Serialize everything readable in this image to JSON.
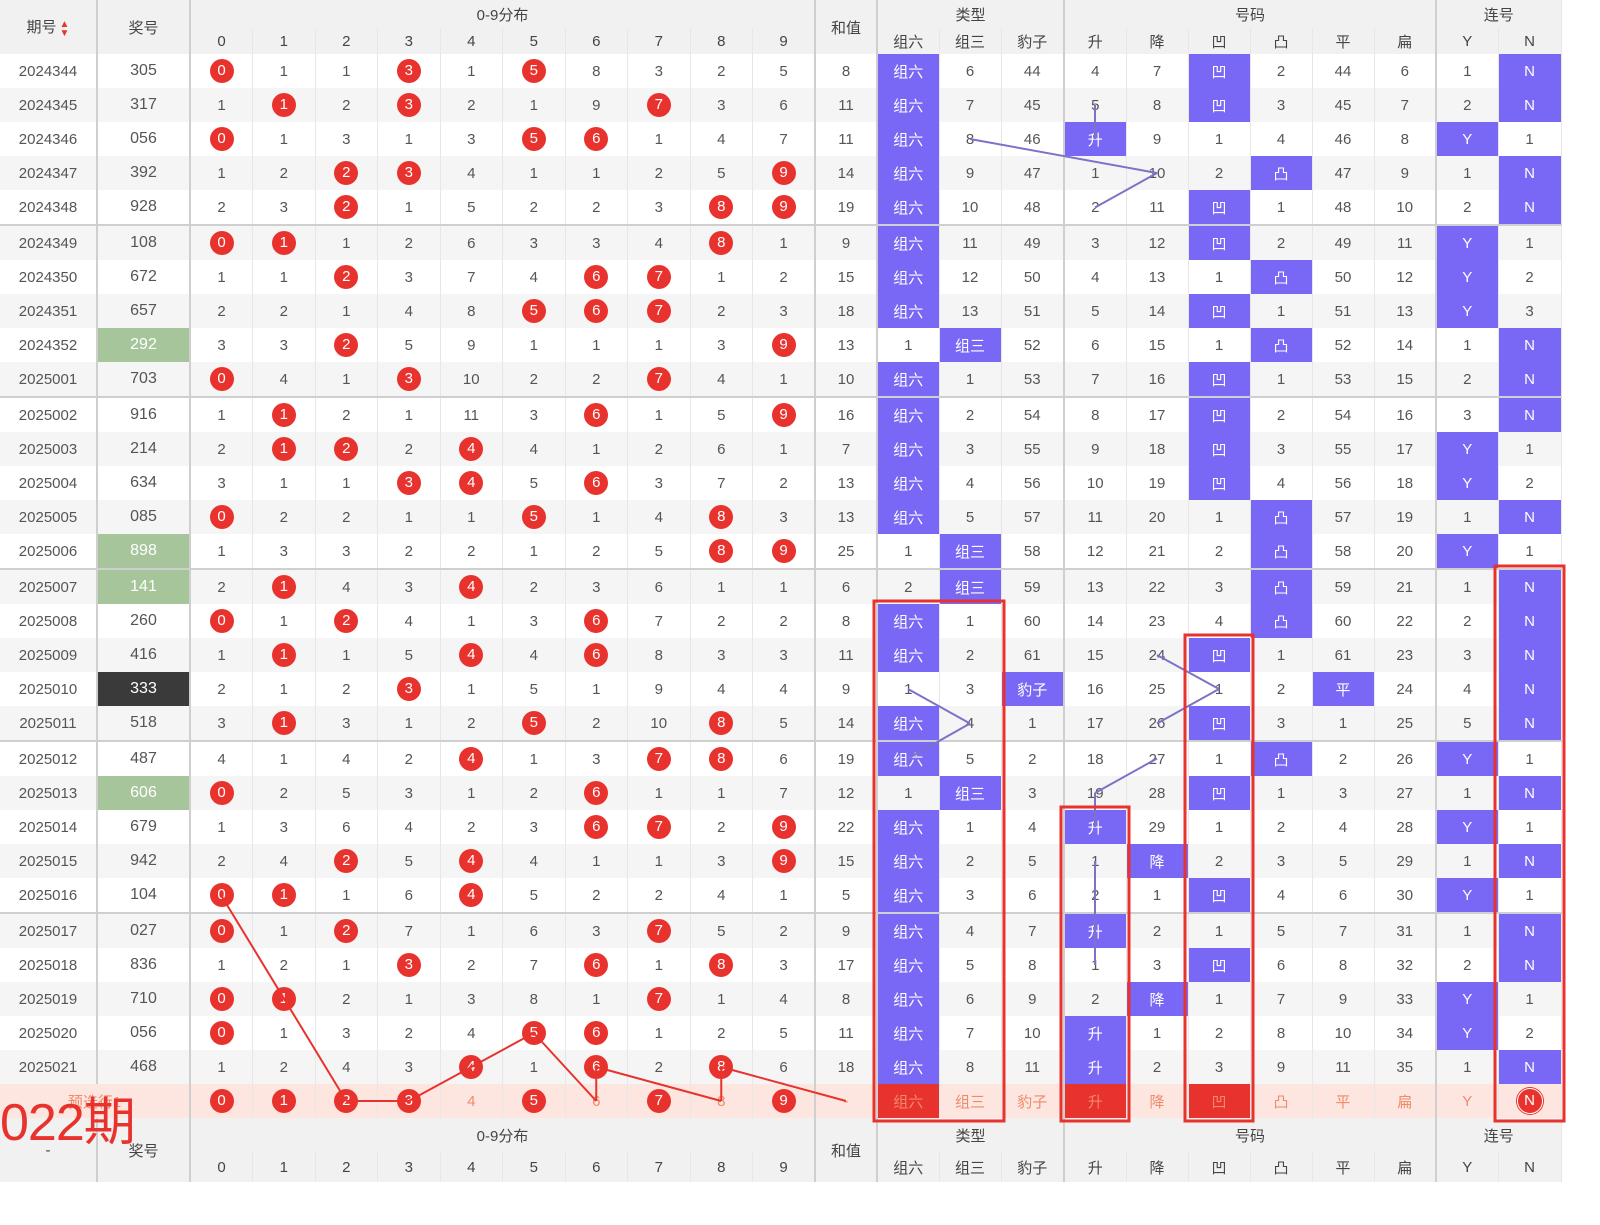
{
  "header": {
    "issue_label": "期号",
    "award_label": "奖号",
    "dist_label": "0-9分布",
    "sum_label": "和值",
    "type_label": "类型",
    "num_label": "号码",
    "consec_label": "连号",
    "digits": [
      "0",
      "1",
      "2",
      "3",
      "4",
      "5",
      "6",
      "7",
      "8",
      "9"
    ],
    "type_cols": [
      "组六",
      "组三",
      "豹子"
    ],
    "num_cols": [
      "升",
      "降",
      "凹",
      "凸",
      "平",
      "扁"
    ],
    "consec_cols": [
      "Y",
      "N"
    ]
  },
  "rows": [
    {
      "issue": "2024344",
      "award": "305",
      "dist": [
        "0",
        "1",
        "1",
        "3",
        "1",
        "5",
        "8",
        "3",
        "2",
        "5"
      ],
      "sum": "8",
      "type": [
        "组六",
        "6",
        "44"
      ],
      "num": [
        "4",
        "7",
        "凹",
        "2",
        "44",
        "6"
      ],
      "consec": [
        "1",
        "N"
      ]
    },
    {
      "issue": "2024345",
      "award": "317",
      "dist": [
        "1",
        "1",
        "2",
        "3",
        "2",
        "1",
        "9",
        "7",
        "3",
        "6"
      ],
      "sum": "11",
      "type": [
        "组六",
        "7",
        "45"
      ],
      "num": [
        "5",
        "8",
        "凹",
        "3",
        "45",
        "7"
      ],
      "consec": [
        "2",
        "N"
      ]
    },
    {
      "issue": "2024346",
      "award": "056",
      "dist": [
        "0",
        "1",
        "3",
        "1",
        "3",
        "5",
        "6",
        "1",
        "4",
        "7"
      ],
      "sum": "11",
      "type": [
        "组六",
        "8",
        "46"
      ],
      "num": [
        "升",
        "9",
        "1",
        "4",
        "46",
        "8"
      ],
      "consec": [
        "Y",
        "1"
      ]
    },
    {
      "issue": "2024347",
      "award": "392",
      "dist": [
        "1",
        "2",
        "2",
        "3",
        "4",
        "1",
        "1",
        "2",
        "5",
        "9"
      ],
      "sum": "14",
      "type": [
        "组六",
        "9",
        "47"
      ],
      "num": [
        "1",
        "10",
        "2",
        "凸",
        "47",
        "9"
      ],
      "consec": [
        "1",
        "N"
      ]
    },
    {
      "issue": "2024348",
      "award": "928",
      "dist": [
        "2",
        "3",
        "2",
        "1",
        "5",
        "2",
        "2",
        "3",
        "8",
        "9"
      ],
      "sum": "19",
      "type": [
        "组六",
        "10",
        "48"
      ],
      "num": [
        "2",
        "11",
        "凹",
        "1",
        "48",
        "10"
      ],
      "consec": [
        "2",
        "N"
      ]
    },
    {
      "issue": "2024349",
      "award": "108",
      "dist": [
        "0",
        "1",
        "1",
        "2",
        "6",
        "3",
        "3",
        "4",
        "8",
        "1"
      ],
      "sum": "9",
      "type": [
        "组六",
        "11",
        "49"
      ],
      "num": [
        "3",
        "12",
        "凹",
        "2",
        "49",
        "11"
      ],
      "consec": [
        "Y",
        "1"
      ]
    },
    {
      "issue": "2024350",
      "award": "672",
      "dist": [
        "1",
        "1",
        "2",
        "3",
        "7",
        "4",
        "6",
        "7",
        "1",
        "2"
      ],
      "sum": "15",
      "type": [
        "组六",
        "12",
        "50"
      ],
      "num": [
        "4",
        "13",
        "1",
        "凸",
        "50",
        "12"
      ],
      "consec": [
        "Y",
        "2"
      ]
    },
    {
      "issue": "2024351",
      "award": "657",
      "dist": [
        "2",
        "2",
        "1",
        "4",
        "8",
        "5",
        "6",
        "7",
        "2",
        "3"
      ],
      "sum": "18",
      "type": [
        "组六",
        "13",
        "51"
      ],
      "num": [
        "5",
        "14",
        "凹",
        "1",
        "51",
        "13"
      ],
      "consec": [
        "Y",
        "3"
      ]
    },
    {
      "issue": "2024352",
      "award": "292",
      "dist": [
        "3",
        "3",
        "2",
        "5",
        "9",
        "1",
        "1",
        "1",
        "3",
        "9"
      ],
      "sum": "13",
      "type": [
        "1",
        "组三",
        "52"
      ],
      "num": [
        "6",
        "15",
        "1",
        "凸",
        "52",
        "14"
      ],
      "consec": [
        "1",
        "N"
      ]
    },
    {
      "issue": "2025001",
      "award": "703",
      "dist": [
        "0",
        "4",
        "1",
        "3",
        "10",
        "2",
        "2",
        "7",
        "4",
        "1"
      ],
      "sum": "10",
      "type": [
        "组六",
        "1",
        "53"
      ],
      "num": [
        "7",
        "16",
        "凹",
        "1",
        "53",
        "15"
      ],
      "consec": [
        "2",
        "N"
      ]
    },
    {
      "issue": "2025002",
      "award": "916",
      "dist": [
        "1",
        "1",
        "2",
        "1",
        "11",
        "3",
        "6",
        "1",
        "5",
        "9"
      ],
      "sum": "16",
      "type": [
        "组六",
        "2",
        "54"
      ],
      "num": [
        "8",
        "17",
        "凹",
        "2",
        "54",
        "16"
      ],
      "consec": [
        "3",
        "N"
      ]
    },
    {
      "issue": "2025003",
      "award": "214",
      "dist": [
        "2",
        "1",
        "2",
        "2",
        "4",
        "4",
        "1",
        "2",
        "6",
        "1"
      ],
      "sum": "7",
      "type": [
        "组六",
        "3",
        "55"
      ],
      "num": [
        "9",
        "18",
        "凹",
        "3",
        "55",
        "17"
      ],
      "consec": [
        "Y",
        "1"
      ]
    },
    {
      "issue": "2025004",
      "award": "634",
      "dist": [
        "3",
        "1",
        "1",
        "3",
        "4",
        "5",
        "6",
        "3",
        "7",
        "2"
      ],
      "sum": "13",
      "type": [
        "组六",
        "4",
        "56"
      ],
      "num": [
        "10",
        "19",
        "凹",
        "4",
        "56",
        "18"
      ],
      "consec": [
        "Y",
        "2"
      ]
    },
    {
      "issue": "2025005",
      "award": "085",
      "dist": [
        "0",
        "2",
        "2",
        "1",
        "1",
        "5",
        "1",
        "4",
        "8",
        "3"
      ],
      "sum": "13",
      "type": [
        "组六",
        "5",
        "57"
      ],
      "num": [
        "11",
        "20",
        "1",
        "凸",
        "57",
        "19"
      ],
      "consec": [
        "1",
        "N"
      ]
    },
    {
      "issue": "2025006",
      "award": "898",
      "dist": [
        "1",
        "3",
        "3",
        "2",
        "2",
        "1",
        "2",
        "5",
        "8",
        "9"
      ],
      "sum": "25",
      "type": [
        "1",
        "组三",
        "58"
      ],
      "num": [
        "12",
        "21",
        "2",
        "凸",
        "58",
        "20"
      ],
      "consec": [
        "Y",
        "1"
      ]
    },
    {
      "issue": "2025007",
      "award": "141",
      "dist": [
        "2",
        "1",
        "4",
        "3",
        "4",
        "2",
        "3",
        "6",
        "1",
        "1"
      ],
      "sum": "6",
      "type": [
        "2",
        "组三",
        "59"
      ],
      "num": [
        "13",
        "22",
        "3",
        "凸",
        "59",
        "21"
      ],
      "consec": [
        "1",
        "N"
      ]
    },
    {
      "issue": "2025008",
      "award": "260",
      "dist": [
        "0",
        "1",
        "2",
        "4",
        "1",
        "3",
        "6",
        "7",
        "2",
        "2"
      ],
      "sum": "8",
      "type": [
        "组六",
        "1",
        "60"
      ],
      "num": [
        "14",
        "23",
        "4",
        "凸",
        "60",
        "22"
      ],
      "consec": [
        "2",
        "N"
      ]
    },
    {
      "issue": "2025009",
      "award": "416",
      "dist": [
        "1",
        "1",
        "1",
        "5",
        "4",
        "4",
        "6",
        "8",
        "3",
        "3"
      ],
      "sum": "11",
      "type": [
        "组六",
        "2",
        "61"
      ],
      "num": [
        "15",
        "24",
        "凹",
        "1",
        "61",
        "23"
      ],
      "consec": [
        "3",
        "N"
      ]
    },
    {
      "issue": "2025010",
      "award": "333",
      "dist": [
        "2",
        "1",
        "2",
        "3",
        "1",
        "5",
        "1",
        "9",
        "4",
        "4"
      ],
      "sum": "9",
      "type": [
        "1",
        "3",
        "豹子"
      ],
      "num": [
        "16",
        "25",
        "1",
        "2",
        "平",
        "24"
      ],
      "consec": [
        "4",
        "N"
      ]
    },
    {
      "issue": "2025011",
      "award": "518",
      "dist": [
        "3",
        "1",
        "3",
        "1",
        "2",
        "5",
        "2",
        "10",
        "8",
        "5"
      ],
      "sum": "14",
      "type": [
        "组六",
        "4",
        "1"
      ],
      "num": [
        "17",
        "26",
        "凹",
        "3",
        "1",
        "25"
      ],
      "consec": [
        "5",
        "N"
      ]
    },
    {
      "issue": "2025012",
      "award": "487",
      "dist": [
        "4",
        "1",
        "4",
        "2",
        "4",
        "1",
        "3",
        "7",
        "8",
        "6"
      ],
      "sum": "19",
      "type": [
        "组六",
        "5",
        "2"
      ],
      "num": [
        "18",
        "27",
        "1",
        "凸",
        "2",
        "26"
      ],
      "consec": [
        "Y",
        "1"
      ]
    },
    {
      "issue": "2025013",
      "award": "606",
      "dist": [
        "0",
        "2",
        "5",
        "3",
        "1",
        "2",
        "6",
        "1",
        "1",
        "7"
      ],
      "sum": "12",
      "type": [
        "1",
        "组三",
        "3"
      ],
      "num": [
        "19",
        "28",
        "凹",
        "1",
        "3",
        "27"
      ],
      "consec": [
        "1",
        "N"
      ]
    },
    {
      "issue": "2025014",
      "award": "679",
      "dist": [
        "1",
        "3",
        "6",
        "4",
        "2",
        "3",
        "6",
        "7",
        "2",
        "9"
      ],
      "sum": "22",
      "type": [
        "组六",
        "1",
        "4"
      ],
      "num": [
        "升",
        "29",
        "1",
        "2",
        "4",
        "28"
      ],
      "consec": [
        "Y",
        "1"
      ]
    },
    {
      "issue": "2025015",
      "award": "942",
      "dist": [
        "2",
        "4",
        "2",
        "5",
        "4",
        "4",
        "1",
        "1",
        "3",
        "9"
      ],
      "sum": "15",
      "type": [
        "组六",
        "2",
        "5"
      ],
      "num": [
        "1",
        "降",
        "2",
        "3",
        "5",
        "29"
      ],
      "consec": [
        "1",
        "N"
      ]
    },
    {
      "issue": "2025016",
      "award": "104",
      "dist": [
        "0",
        "1",
        "1",
        "6",
        "4",
        "5",
        "2",
        "2",
        "4",
        "1"
      ],
      "sum": "5",
      "type": [
        "组六",
        "3",
        "6"
      ],
      "num": [
        "2",
        "1",
        "凹",
        "4",
        "6",
        "30"
      ],
      "consec": [
        "Y",
        "1"
      ]
    },
    {
      "issue": "2025017",
      "award": "027",
      "dist": [
        "0",
        "1",
        "2",
        "7",
        "1",
        "6",
        "3",
        "7",
        "5",
        "2"
      ],
      "sum": "9",
      "type": [
        "组六",
        "4",
        "7"
      ],
      "num": [
        "升",
        "2",
        "1",
        "5",
        "7",
        "31"
      ],
      "consec": [
        "1",
        "N"
      ]
    },
    {
      "issue": "2025018",
      "award": "836",
      "dist": [
        "1",
        "2",
        "1",
        "3",
        "2",
        "7",
        "6",
        "1",
        "8",
        "3"
      ],
      "sum": "17",
      "type": [
        "组六",
        "5",
        "8"
      ],
      "num": [
        "1",
        "3",
        "凹",
        "6",
        "8",
        "32"
      ],
      "consec": [
        "2",
        "N"
      ]
    },
    {
      "issue": "2025019",
      "award": "710",
      "dist": [
        "0",
        "1",
        "2",
        "1",
        "3",
        "8",
        "1",
        "7",
        "1",
        "4"
      ],
      "sum": "8",
      "type": [
        "组六",
        "6",
        "9"
      ],
      "num": [
        "2",
        "降",
        "1",
        "7",
        "9",
        "33"
      ],
      "consec": [
        "Y",
        "1"
      ]
    },
    {
      "issue": "2025020",
      "award": "056",
      "dist": [
        "0",
        "1",
        "3",
        "2",
        "4",
        "5",
        "6",
        "1",
        "2",
        "5"
      ],
      "sum": "11",
      "type": [
        "组六",
        "7",
        "10"
      ],
      "num": [
        "升",
        "1",
        "2",
        "8",
        "10",
        "34"
      ],
      "consec": [
        "Y",
        "2"
      ]
    },
    {
      "issue": "2025021",
      "award": "468",
      "dist": [
        "1",
        "2",
        "4",
        "3",
        "4",
        "1",
        "6",
        "2",
        "8",
        "6"
      ],
      "sum": "18",
      "type": [
        "组六",
        "8",
        "11"
      ],
      "num": [
        "升",
        "2",
        "3",
        "9",
        "11",
        "35"
      ],
      "consec": [
        "1",
        "N"
      ]
    }
  ],
  "predict": {
    "label": "预选行1",
    "dist": [
      "0",
      "1",
      "2",
      "3",
      "4",
      "5",
      "6",
      "7",
      "8",
      "9"
    ],
    "sum": "-",
    "type": [
      "组六",
      "组三",
      "豹子"
    ],
    "num": [
      "升",
      "降",
      "凹",
      "凸",
      "平",
      "扁"
    ],
    "consec": [
      "Y",
      "N"
    ]
  },
  "overlay_text": "022期",
  "footer": {
    "issue_placeholder": "-"
  },
  "colors": {
    "ball_red": "#e8322d",
    "hit_purple": "#7967f5",
    "award_green": "#a6c59b",
    "award_dark": "#3a3a3a"
  }
}
